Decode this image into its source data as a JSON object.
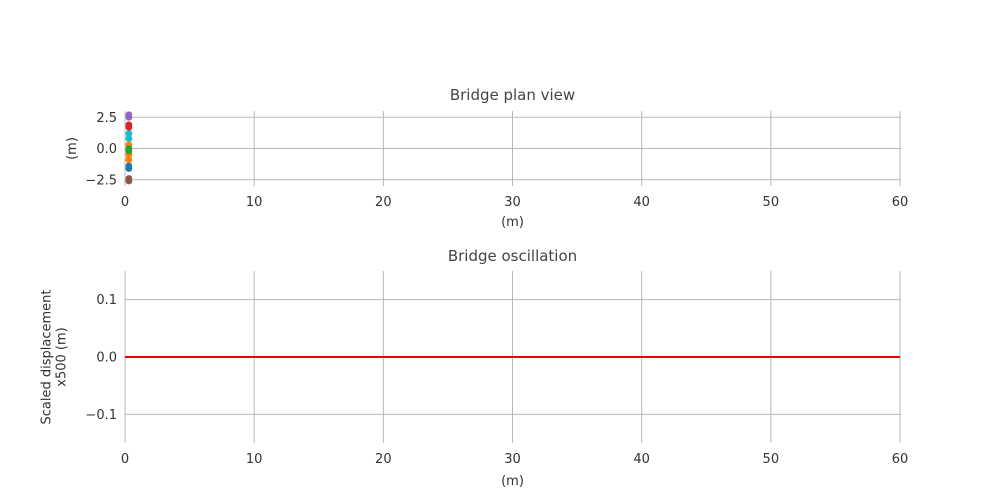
{
  "chart_data": [
    {
      "type": "scatter",
      "title": "Bridge plan view",
      "xlabel": "(m)",
      "ylabel": "(m)",
      "xlim": [
        0,
        60
      ],
      "ylim": [
        -3.0,
        3.0
      ],
      "xticks": [
        0,
        10,
        20,
        30,
        40,
        50,
        60
      ],
      "yticks": [
        2.5,
        0.0,
        -2.5
      ],
      "xtick_labels": [
        "0",
        "10",
        "20",
        "30",
        "40",
        "50",
        "60"
      ],
      "ytick_labels": [
        "2.5",
        "0.0",
        "−2.5"
      ],
      "grid": true,
      "series": [
        {
          "color": "#8c564b",
          "points": [
            [
              0.3,
              -2.6
            ],
            [
              0.3,
              -2.4
            ]
          ]
        },
        {
          "color": "#1f77b4",
          "points": [
            [
              0.3,
              -1.6
            ],
            [
              0.3,
              -1.4
            ]
          ]
        },
        {
          "color": "#ff7f0e",
          "points": [
            [
              0.3,
              -0.9
            ],
            [
              0.3,
              -0.5
            ],
            [
              0.3,
              0.3
            ]
          ]
        },
        {
          "color": "#2ca02c",
          "points": [
            [
              0.3,
              -0.2
            ],
            [
              0.3,
              0.0
            ]
          ]
        },
        {
          "color": "#17becf",
          "points": [
            [
              0.3,
              0.8
            ],
            [
              0.3,
              1.2
            ]
          ]
        },
        {
          "color": "#d62728",
          "points": [
            [
              0.3,
              1.7
            ],
            [
              0.3,
              1.9
            ]
          ]
        },
        {
          "color": "#9467bd",
          "points": [
            [
              0.3,
              2.5
            ],
            [
              0.3,
              2.7
            ]
          ]
        }
      ]
    },
    {
      "type": "line",
      "title": "Bridge oscillation",
      "xlabel": "(m)",
      "ylabel": [
        "Scaled displacement",
        "x500 (m)"
      ],
      "xlim": [
        0,
        60
      ],
      "ylim": [
        -0.15,
        0.15
      ],
      "xticks": [
        0,
        10,
        20,
        30,
        40,
        50,
        60
      ],
      "yticks": [
        0.1,
        0.0,
        -0.1
      ],
      "xtick_labels": [
        "0",
        "10",
        "20",
        "30",
        "40",
        "50",
        "60"
      ],
      "ytick_labels": [
        "0.1",
        "0.0",
        "−0.1"
      ],
      "grid": true,
      "series": [
        {
          "color": "#e8000b",
          "x": [
            0,
            60
          ],
          "y": [
            0.0,
            0.0
          ]
        }
      ]
    }
  ]
}
